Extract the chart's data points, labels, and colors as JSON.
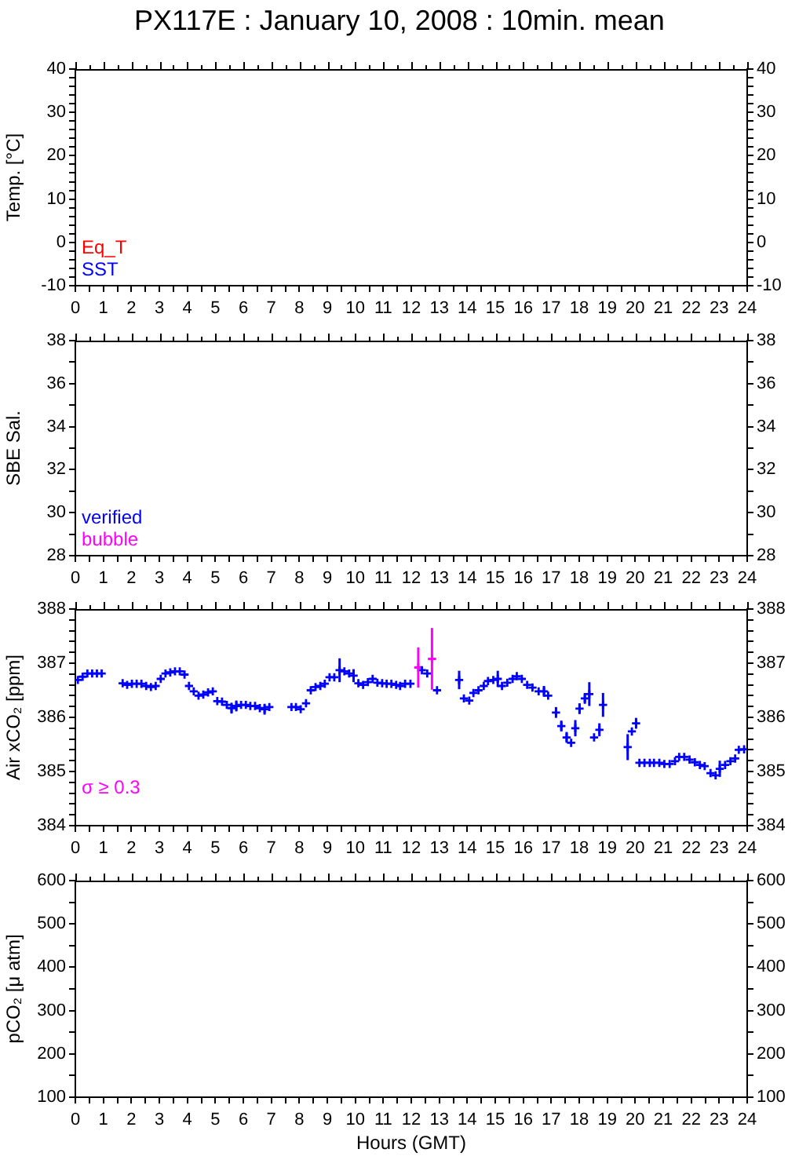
{
  "chart_data": [
    {
      "type": "scatter",
      "title": "PX117E : January 10, 2008 : 10min. mean",
      "ylabel": "Temp. [°C]",
      "xlim": [
        0,
        24
      ],
      "xticks": [
        0,
        {
          "value": 0.5,
          "label": null
        },
        1,
        {
          "value": 1.5,
          "label": null
        },
        2,
        {
          "value": 2.5,
          "label": null
        },
        3,
        {
          "value": 3.5,
          "label": null
        },
        4,
        {
          "value": 4.5,
          "label": null
        },
        5,
        {
          "value": 5.5,
          "label": null
        },
        6,
        {
          "value": 6.5,
          "label": null
        },
        7,
        {
          "value": 7.5,
          "label": null
        },
        8,
        {
          "value": 8.5,
          "label": null
        },
        9,
        {
          "value": 9.5,
          "label": null
        },
        10,
        {
          "value": 10.5,
          "label": null
        },
        11,
        {
          "value": 11.5,
          "label": null
        },
        12,
        {
          "value": 12.5,
          "label": null
        },
        13,
        {
          "value": 13.5,
          "label": null
        },
        14,
        {
          "value": 14.5,
          "label": null
        },
        15,
        {
          "value": 15.5,
          "label": null
        },
        16,
        {
          "value": 16.5,
          "label": null
        },
        17,
        {
          "value": 17.5,
          "label": null
        },
        18,
        {
          "value": 18.5,
          "label": null
        },
        19,
        {
          "value": 19.5,
          "label": null
        },
        20,
        {
          "value": 20.5,
          "label": null
        },
        21,
        {
          "value": 21.5,
          "label": null
        },
        22,
        {
          "value": 22.5,
          "label": null
        },
        23,
        {
          "value": 23.5,
          "label": null
        },
        24
      ],
      "ylim": [
        -10,
        40
      ],
      "yticks": [
        -10,
        {
          "value": -8,
          "label": null
        },
        {
          "value": -6,
          "label": null
        },
        {
          "value": -4,
          "label": null
        },
        {
          "value": -2,
          "label": null
        },
        0,
        {
          "value": 2,
          "label": null
        },
        {
          "value": 4,
          "label": null
        },
        {
          "value": 6,
          "label": null
        },
        {
          "value": 8,
          "label": null
        },
        10,
        {
          "value": 12,
          "label": null
        },
        {
          "value": 14,
          "label": null
        },
        {
          "value": 16,
          "label": null
        },
        {
          "value": 18,
          "label": null
        },
        20,
        {
          "value": 22,
          "label": null
        },
        {
          "value": 24,
          "label": null
        },
        {
          "value": 26,
          "label": null
        },
        {
          "value": 28,
          "label": null
        },
        30,
        {
          "value": 32,
          "label": null
        },
        {
          "value": 34,
          "label": null
        },
        {
          "value": 36,
          "label": null
        },
        {
          "value": 38,
          "label": null
        },
        40
      ],
      "y2lim": [
        -10,
        40
      ],
      "y2ticks": [
        -10,
        {
          "value": -8,
          "label": null
        },
        {
          "value": -6,
          "label": null
        },
        {
          "value": -4,
          "label": null
        },
        {
          "value": -2,
          "label": null
        },
        0,
        {
          "value": 2,
          "label": null
        },
        {
          "value": 4,
          "label": null
        },
        {
          "value": 6,
          "label": null
        },
        {
          "value": 8,
          "label": null
        },
        10,
        {
          "value": 12,
          "label": null
        },
        {
          "value": 14,
          "label": null
        },
        {
          "value": 16,
          "label": null
        },
        {
          "value": 18,
          "label": null
        },
        20,
        {
          "value": 22,
          "label": null
        },
        {
          "value": 24,
          "label": null
        },
        {
          "value": 26,
          "label": null
        },
        {
          "value": 28,
          "label": null
        },
        30,
        {
          "value": 32,
          "label": null
        },
        {
          "value": 34,
          "label": null
        },
        {
          "value": 36,
          "label": null
        },
        {
          "value": 38,
          "label": null
        },
        40
      ],
      "series": [
        {
          "name": "Eq_T",
          "color": "#ff0000",
          "x": [
            null
          ],
          "values": [
            null
          ]
        },
        {
          "name": "SST",
          "color": "#0000ff",
          "x": [
            null
          ],
          "values": [
            null
          ]
        }
      ]
    },
    {
      "type": "scatter",
      "ylabel": "SBE Sal.",
      "xlim": [
        0,
        24
      ],
      "xticks": [
        0,
        {
          "value": 0.5,
          "label": null
        },
        1,
        {
          "value": 1.5,
          "label": null
        },
        2,
        {
          "value": 2.5,
          "label": null
        },
        3,
        {
          "value": 3.5,
          "label": null
        },
        4,
        {
          "value": 4.5,
          "label": null
        },
        5,
        {
          "value": 5.5,
          "label": null
        },
        6,
        {
          "value": 6.5,
          "label": null
        },
        7,
        {
          "value": 7.5,
          "label": null
        },
        8,
        {
          "value": 8.5,
          "label": null
        },
        9,
        {
          "value": 9.5,
          "label": null
        },
        10,
        {
          "value": 10.5,
          "label": null
        },
        11,
        {
          "value": 11.5,
          "label": null
        },
        12,
        {
          "value": 12.5,
          "label": null
        },
        13,
        {
          "value": 13.5,
          "label": null
        },
        14,
        {
          "value": 14.5,
          "label": null
        },
        15,
        {
          "value": 15.5,
          "label": null
        },
        16,
        {
          "value": 16.5,
          "label": null
        },
        17,
        {
          "value": 17.5,
          "label": null
        },
        18,
        {
          "value": 18.5,
          "label": null
        },
        19,
        {
          "value": 19.5,
          "label": null
        },
        20,
        {
          "value": 20.5,
          "label": null
        },
        21,
        {
          "value": 21.5,
          "label": null
        },
        22,
        {
          "value": 22.5,
          "label": null
        },
        23,
        {
          "value": 23.5,
          "label": null
        },
        24
      ],
      "ylim": [
        28,
        38
      ],
      "yticks": [
        28,
        {
          "value": 29,
          "label": null
        },
        30,
        {
          "value": 31,
          "label": null
        },
        32,
        {
          "value": 33,
          "label": null
        },
        34,
        {
          "value": 35,
          "label": null
        },
        36,
        {
          "value": 37,
          "label": null
        },
        38
      ],
      "y2lim": [
        28,
        38
      ],
      "y2ticks": [
        28,
        {
          "value": 29,
          "label": null
        },
        30,
        {
          "value": 31,
          "label": null
        },
        32,
        {
          "value": 33,
          "label": null
        },
        34,
        {
          "value": 35,
          "label": null
        },
        36,
        {
          "value": 37,
          "label": null
        },
        38
      ],
      "series": [
        {
          "name": "verified",
          "color": "#0000ff",
          "x": [
            null
          ],
          "values": [
            null
          ]
        },
        {
          "name": "bubble",
          "color": "#ff00ff",
          "x": [
            null
          ],
          "values": [
            null
          ]
        }
      ]
    },
    {
      "type": "scatter",
      "ylabel": "Air xCO₂ [ppm]",
      "marker": "cross",
      "xlim": [
        0,
        24
      ],
      "xticks": [
        0,
        {
          "value": 0.5,
          "label": null
        },
        1,
        {
          "value": 1.5,
          "label": null
        },
        2,
        {
          "value": 2.5,
          "label": null
        },
        3,
        {
          "value": 3.5,
          "label": null
        },
        4,
        {
          "value": 4.5,
          "label": null
        },
        5,
        {
          "value": 5.5,
          "label": null
        },
        6,
        {
          "value": 6.5,
          "label": null
        },
        7,
        {
          "value": 7.5,
          "label": null
        },
        8,
        {
          "value": 8.5,
          "label": null
        },
        9,
        {
          "value": 9.5,
          "label": null
        },
        10,
        {
          "value": 10.5,
          "label": null
        },
        11,
        {
          "value": 11.5,
          "label": null
        },
        12,
        {
          "value": 12.5,
          "label": null
        },
        13,
        {
          "value": 13.5,
          "label": null
        },
        14,
        {
          "value": 14.5,
          "label": null
        },
        15,
        {
          "value": 15.5,
          "label": null
        },
        16,
        {
          "value": 16.5,
          "label": null
        },
        17,
        {
          "value": 17.5,
          "label": null
        },
        18,
        {
          "value": 18.5,
          "label": null
        },
        19,
        {
          "value": 19.5,
          "label": null
        },
        20,
        {
          "value": 20.5,
          "label": null
        },
        21,
        {
          "value": 21.5,
          "label": null
        },
        22,
        {
          "value": 22.5,
          "label": null
        },
        23,
        {
          "value": 23.5,
          "label": null
        },
        24
      ],
      "ylim": [
        384,
        388
      ],
      "yticks": [
        384,
        {
          "value": 384.2,
          "label": null
        },
        {
          "value": 384.4,
          "label": null
        },
        {
          "value": 384.6,
          "label": null
        },
        {
          "value": 384.8,
          "label": null
        },
        385,
        {
          "value": 385.2,
          "label": null
        },
        {
          "value": 385.4,
          "label": null
        },
        {
          "value": 385.6,
          "label": null
        },
        {
          "value": 385.8,
          "label": null
        },
        386,
        {
          "value": 386.2,
          "label": null
        },
        {
          "value": 386.4,
          "label": null
        },
        {
          "value": 386.6,
          "label": null
        },
        {
          "value": 386.8,
          "label": null
        },
        387,
        {
          "value": 387.2,
          "label": null
        },
        {
          "value": 387.4,
          "label": null
        },
        {
          "value": 387.6,
          "label": null
        },
        {
          "value": 387.8,
          "label": null
        },
        388
      ],
      "y2lim": [
        384,
        388
      ],
      "y2ticks": [
        384,
        {
          "value": 384.2,
          "label": null
        },
        {
          "value": 384.4,
          "label": null
        },
        {
          "value": 384.6,
          "label": null
        },
        {
          "value": 384.8,
          "label": null
        },
        385,
        {
          "value": 385.2,
          "label": null
        },
        {
          "value": 385.4,
          "label": null
        },
        {
          "value": 385.6,
          "label": null
        },
        {
          "value": 385.8,
          "label": null
        },
        386,
        {
          "value": 386.2,
          "label": null
        },
        {
          "value": 386.4,
          "label": null
        },
        {
          "value": 386.6,
          "label": null
        },
        {
          "value": 386.8,
          "label": null
        },
        387,
        {
          "value": 387.2,
          "label": null
        },
        {
          "value": 387.4,
          "label": null
        },
        {
          "value": 387.6,
          "label": null
        },
        {
          "value": 387.8,
          "label": null
        },
        388
      ],
      "series": [
        {
          "color": "#0000ff",
          "x": [
            0.09,
            0.26,
            0.43,
            0.6,
            0.77,
            0.94,
            1.69,
            1.85,
            2.02,
            2.19,
            2.36,
            2.53,
            2.7,
            2.87,
            3.05,
            3.22,
            3.39,
            3.56,
            3.73,
            3.9,
            4.06,
            4.23,
            4.4,
            4.57,
            4.74,
            4.91,
            5.07,
            5.24,
            5.41,
            5.58,
            5.75,
            5.92,
            6.09,
            6.25,
            6.42,
            6.59,
            6.76,
            6.93,
            7.72,
            7.88,
            8.05,
            8.24,
            8.41,
            8.58,
            8.75,
            8.91,
            9.08,
            9.25,
            9.44,
            9.61,
            9.78,
            9.94,
            10.11,
            10.28,
            10.45,
            10.62,
            10.79,
            10.96,
            11.12,
            11.29,
            11.46,
            11.6,
            11.78,
            11.97,
            12.38,
            12.57,
            12.92,
            13.71,
            13.88,
            14.07,
            14.22,
            14.4,
            14.59,
            14.74,
            14.93,
            15.09,
            15.24,
            15.43,
            15.62,
            15.77,
            15.95,
            16.14,
            16.33,
            16.55,
            16.74,
            16.89,
            17.17,
            17.36,
            17.55,
            17.71,
            17.86,
            18.01,
            18.2,
            18.36,
            18.53,
            18.72,
            18.85,
            19.73,
            19.88,
            20.03,
            20.15,
            20.33,
            20.52,
            20.67,
            20.86,
            21.04,
            21.23,
            21.42,
            21.57,
            21.75,
            21.94,
            22.13,
            22.31,
            22.48,
            22.69,
            22.87,
            23.02,
            23.21,
            23.4,
            23.57,
            23.7,
            23.89
          ],
          "values": [
            386.69,
            386.75,
            386.81,
            386.81,
            386.81,
            386.81,
            386.63,
            386.6,
            386.62,
            386.62,
            386.62,
            386.58,
            386.56,
            386.58,
            386.71,
            386.81,
            386.83,
            386.85,
            386.85,
            386.79,
            386.58,
            386.48,
            386.4,
            386.42,
            386.46,
            386.48,
            386.3,
            386.29,
            386.23,
            386.17,
            386.21,
            386.23,
            386.23,
            386.21,
            386.21,
            386.17,
            386.15,
            386.19,
            386.19,
            386.19,
            386.15,
            386.26,
            386.5,
            386.56,
            386.58,
            386.62,
            386.74,
            386.74,
            386.87,
            386.85,
            386.81,
            386.77,
            386.63,
            386.6,
            386.65,
            386.71,
            386.64,
            386.63,
            386.62,
            386.62,
            386.6,
            386.58,
            386.62,
            386.62,
            386.87,
            386.81,
            386.5,
            386.69,
            386.35,
            386.31,
            386.45,
            386.5,
            386.58,
            386.67,
            386.69,
            386.71,
            386.58,
            386.64,
            386.71,
            386.76,
            386.71,
            386.6,
            386.55,
            386.48,
            386.48,
            386.4,
            386.09,
            385.84,
            385.63,
            385.53,
            385.8,
            386.16,
            386.35,
            386.43,
            385.63,
            385.77,
            386.23,
            385.45,
            385.74,
            385.89,
            385.16,
            385.16,
            385.16,
            385.16,
            385.16,
            385.14,
            385.14,
            385.19,
            385.27,
            385.27,
            385.22,
            385.17,
            385.12,
            385.1,
            384.97,
            384.93,
            385.05,
            385.12,
            385.19,
            385.24,
            385.4,
            385.41
          ],
          "errors": [
            null,
            null,
            null,
            null,
            null,
            null,
            null,
            null,
            null,
            null,
            null,
            null,
            null,
            null,
            null,
            null,
            null,
            null,
            null,
            null,
            null,
            null,
            null,
            null,
            null,
            null,
            null,
            null,
            null,
            0.1,
            0.1,
            null,
            null,
            null,
            null,
            null,
            0.1,
            null,
            null,
            null,
            null,
            null,
            null,
            null,
            null,
            null,
            null,
            null,
            0.22,
            null,
            null,
            0.12,
            null,
            null,
            null,
            null,
            null,
            null,
            null,
            null,
            null,
            null,
            null,
            null,
            null,
            null,
            null,
            0.17,
            null,
            null,
            null,
            null,
            null,
            null,
            null,
            0.15,
            null,
            null,
            null,
            null,
            null,
            null,
            null,
            null,
            0.1,
            null,
            0.1,
            0.1,
            0.1,
            null,
            0.15,
            0.1,
            0.1,
            0.22,
            null,
            0.12,
            0.22,
            0.24,
            null,
            0.1,
            null,
            null,
            null,
            null,
            null,
            null,
            null,
            null,
            null,
            null,
            null,
            null,
            null,
            null,
            null,
            null,
            0.15,
            null,
            null,
            null,
            null,
            null
          ]
        },
        {
          "name": "σ ≥ 0.3",
          "color": "#ff00ff",
          "x": [
            12.25,
            12.74
          ],
          "values": [
            386.92,
            387.08
          ],
          "errors": [
            0.37,
            0.57
          ]
        }
      ]
    },
    {
      "type": "scatter",
      "ylabel": "pCO₂ [μ atm]",
      "xlabel": "Hours (GMT)",
      "xlim": [
        0,
        24
      ],
      "xticks": [
        0,
        {
          "value": 0.5,
          "label": null
        },
        1,
        {
          "value": 1.5,
          "label": null
        },
        2,
        {
          "value": 2.5,
          "label": null
        },
        3,
        {
          "value": 3.5,
          "label": null
        },
        4,
        {
          "value": 4.5,
          "label": null
        },
        5,
        {
          "value": 5.5,
          "label": null
        },
        6,
        {
          "value": 6.5,
          "label": null
        },
        7,
        {
          "value": 7.5,
          "label": null
        },
        8,
        {
          "value": 8.5,
          "label": null
        },
        9,
        {
          "value": 9.5,
          "label": null
        },
        10,
        {
          "value": 10.5,
          "label": null
        },
        11,
        {
          "value": 11.5,
          "label": null
        },
        12,
        {
          "value": 12.5,
          "label": null
        },
        13,
        {
          "value": 13.5,
          "label": null
        },
        14,
        {
          "value": 14.5,
          "label": null
        },
        15,
        {
          "value": 15.5,
          "label": null
        },
        16,
        {
          "value": 16.5,
          "label": null
        },
        17,
        {
          "value": 17.5,
          "label": null
        },
        18,
        {
          "value": 18.5,
          "label": null
        },
        19,
        {
          "value": 19.5,
          "label": null
        },
        20,
        {
          "value": 20.5,
          "label": null
        },
        21,
        {
          "value": 21.5,
          "label": null
        },
        22,
        {
          "value": 22.5,
          "label": null
        },
        23,
        {
          "value": 23.5,
          "label": null
        },
        24
      ],
      "ylim": [
        100,
        600
      ],
      "yticks": [
        100,
        {
          "value": 150,
          "label": null
        },
        200,
        {
          "value": 250,
          "label": null
        },
        300,
        {
          "value": 350,
          "label": null
        },
        400,
        {
          "value": 450,
          "label": null
        },
        500,
        {
          "value": 550,
          "label": null
        },
        600
      ],
      "y2lim": [
        100,
        600
      ],
      "y2ticks": [
        100,
        {
          "value": 150,
          "label": null
        },
        200,
        {
          "value": 250,
          "label": null
        },
        300,
        {
          "value": 350,
          "label": null
        },
        400,
        {
          "value": 450,
          "label": null
        },
        500,
        {
          "value": 550,
          "label": null
        },
        600
      ]
    }
  ]
}
